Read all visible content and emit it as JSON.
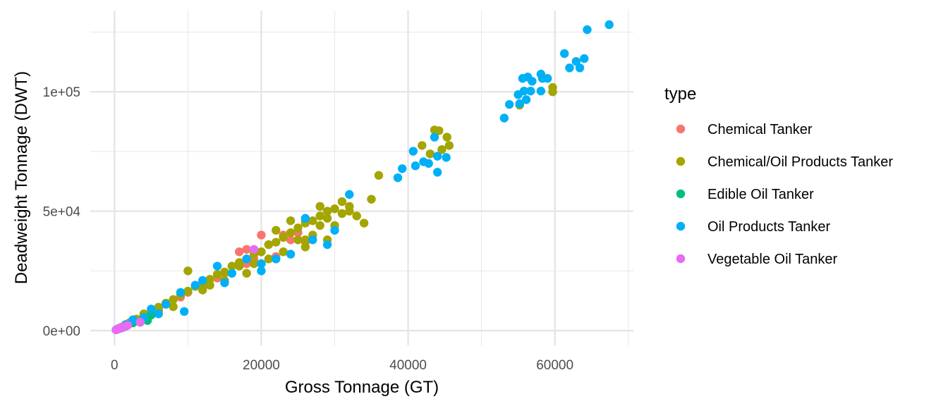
{
  "chart_data": {
    "type": "scatter",
    "xlabel": "Gross Tonnage (GT)",
    "ylabel": "Deadweight Tonnage (DWT)",
    "xlim": [
      -3300,
      70700
    ],
    "ylim": [
      -6200,
      134000
    ],
    "x_ticks": [
      0,
      20000,
      40000,
      60000
    ],
    "x_tick_labels": [
      "0",
      "20000",
      "40000",
      "60000"
    ],
    "y_ticks": [
      0,
      50000,
      100000
    ],
    "y_tick_labels": [
      "0e+00",
      "5e+04",
      "1e+05"
    ],
    "grid": true,
    "legend": {
      "title": "type",
      "position": "right"
    },
    "series": [
      {
        "name": "Chemical Tanker",
        "color": "#F8766D",
        "points": [
          [
            19000,
            30000
          ],
          [
            20000,
            40000
          ],
          [
            17000,
            33000
          ],
          [
            18000,
            34000
          ],
          [
            21000,
            36000
          ],
          [
            23000,
            40000
          ],
          [
            25000,
            41000
          ],
          [
            26000,
            46000
          ],
          [
            24000,
            38000
          ],
          [
            15000,
            24000
          ],
          [
            10000,
            16000
          ],
          [
            9000,
            14000
          ],
          [
            12000,
            18000
          ],
          [
            18000,
            28000
          ],
          [
            22000,
            31000
          ],
          [
            6000,
            9000
          ],
          [
            4000,
            6500
          ],
          [
            2000,
            3000
          ],
          [
            14000,
            22000
          ],
          [
            26000,
            37000
          ]
        ]
      },
      {
        "name": "Chemical/Oil Products Tanker",
        "color": "#A3A500",
        "points": [
          [
            1000,
            1500
          ],
          [
            2000,
            3200
          ],
          [
            3000,
            4800
          ],
          [
            4000,
            6500
          ],
          [
            5000,
            8000
          ],
          [
            6000,
            9800
          ],
          [
            7000,
            11500
          ],
          [
            8000,
            13000
          ],
          [
            9000,
            15000
          ],
          [
            10000,
            16500
          ],
          [
            11000,
            18500
          ],
          [
            12000,
            20000
          ],
          [
            13000,
            21500
          ],
          [
            14000,
            23500
          ],
          [
            15000,
            24500
          ],
          [
            16000,
            27000
          ],
          [
            17000,
            28500
          ],
          [
            18000,
            30000
          ],
          [
            19000,
            32000
          ],
          [
            20000,
            33000
          ],
          [
            21000,
            36000
          ],
          [
            22000,
            37000
          ],
          [
            23000,
            39000
          ],
          [
            24000,
            41000
          ],
          [
            25000,
            43000
          ],
          [
            26000,
            45000
          ],
          [
            27000,
            46000
          ],
          [
            28000,
            48000
          ],
          [
            29000,
            50000
          ],
          [
            30000,
            51000
          ],
          [
            31000,
            49000
          ],
          [
            32000,
            50000
          ],
          [
            33000,
            48000
          ],
          [
            34000,
            45000
          ],
          [
            26000,
            38000
          ],
          [
            27000,
            40000
          ],
          [
            28000,
            44000
          ],
          [
            24000,
            46000
          ],
          [
            22000,
            42000
          ],
          [
            18000,
            24000
          ],
          [
            10000,
            25000
          ],
          [
            15000,
            21000
          ],
          [
            20000,
            28000
          ],
          [
            25000,
            38000
          ],
          [
            29000,
            47000
          ],
          [
            30000,
            44000
          ],
          [
            36000,
            65000
          ],
          [
            35000,
            55000
          ],
          [
            32000,
            52000
          ],
          [
            28000,
            52000
          ],
          [
            31000,
            54000
          ],
          [
            21000,
            30000
          ],
          [
            17000,
            27000
          ],
          [
            12000,
            17000
          ],
          [
            8000,
            10000
          ],
          [
            6000,
            8000
          ],
          [
            4000,
            7000
          ],
          [
            3000,
            4000
          ],
          [
            13000,
            19000
          ],
          [
            19000,
            28000
          ],
          [
            23000,
            33000
          ],
          [
            26000,
            35000
          ],
          [
            29000,
            38000
          ],
          [
            43600,
            84000
          ],
          [
            44200,
            83700
          ],
          [
            45300,
            81000
          ],
          [
            45600,
            77500
          ],
          [
            44600,
            75800
          ],
          [
            41900,
            77500
          ],
          [
            43000,
            74000
          ],
          [
            59700,
            101800
          ],
          [
            59700,
            100000
          ],
          [
            55200,
            94400
          ]
        ]
      },
      {
        "name": "Edible Oil Tanker",
        "color": "#00BF7D",
        "points": [
          [
            1500,
            1800
          ],
          [
            3500,
            3500
          ],
          [
            5000,
            6500
          ],
          [
            2500,
            3200
          ],
          [
            800,
            1200
          ],
          [
            4500,
            4200
          ]
        ]
      },
      {
        "name": "Oil Products Tanker",
        "color": "#00B0F6",
        "points": [
          [
            500,
            800
          ],
          [
            1500,
            2500
          ],
          [
            2500,
            4500
          ],
          [
            4000,
            5500
          ],
          [
            5000,
            9000
          ],
          [
            7000,
            11000
          ],
          [
            9500,
            8000
          ],
          [
            9000,
            16000
          ],
          [
            12000,
            21000
          ],
          [
            14000,
            27000
          ],
          [
            16000,
            24000
          ],
          [
            18000,
            30000
          ],
          [
            20000,
            28000
          ],
          [
            22000,
            30000
          ],
          [
            24000,
            32000
          ],
          [
            27000,
            38000
          ],
          [
            29000,
            36000
          ],
          [
            26000,
            47000
          ],
          [
            30000,
            42000
          ],
          [
            32000,
            57000
          ],
          [
            20000,
            25000
          ],
          [
            15000,
            20000
          ],
          [
            11000,
            19000
          ],
          [
            6000,
            7000
          ],
          [
            40700,
            75100
          ],
          [
            42100,
            70700
          ],
          [
            44000,
            73000
          ],
          [
            39200,
            67800
          ],
          [
            44000,
            66300
          ],
          [
            41000,
            69000
          ],
          [
            43600,
            81000
          ],
          [
            45200,
            72500
          ],
          [
            38600,
            64000
          ],
          [
            42800,
            70000
          ],
          [
            67400,
            128100
          ],
          [
            64400,
            126000
          ],
          [
            61300,
            116000
          ],
          [
            62900,
            112700
          ],
          [
            64000,
            113900
          ],
          [
            62000,
            110000
          ],
          [
            63400,
            110000
          ],
          [
            58100,
            107400
          ],
          [
            56300,
            106200
          ],
          [
            58300,
            105600
          ],
          [
            55600,
            105600
          ],
          [
            56900,
            104400
          ],
          [
            59000,
            105600
          ],
          [
            56700,
            100300
          ],
          [
            55800,
            100300
          ],
          [
            58100,
            100300
          ],
          [
            55000,
            98800
          ],
          [
            56100,
            96700
          ],
          [
            55200,
            95000
          ],
          [
            53800,
            94700
          ],
          [
            53100,
            89000
          ]
        ]
      },
      {
        "name": "Vegetable Oil Tanker",
        "color": "#E76BF3",
        "points": [
          [
            200,
            300
          ],
          [
            500,
            600
          ],
          [
            800,
            1200
          ],
          [
            1200,
            1600
          ],
          [
            1800,
            2200
          ],
          [
            3500,
            3500
          ],
          [
            1000,
            1100
          ],
          [
            19000,
            34000
          ],
          [
            600,
            900
          ],
          [
            300,
            500
          ]
        ]
      }
    ]
  }
}
